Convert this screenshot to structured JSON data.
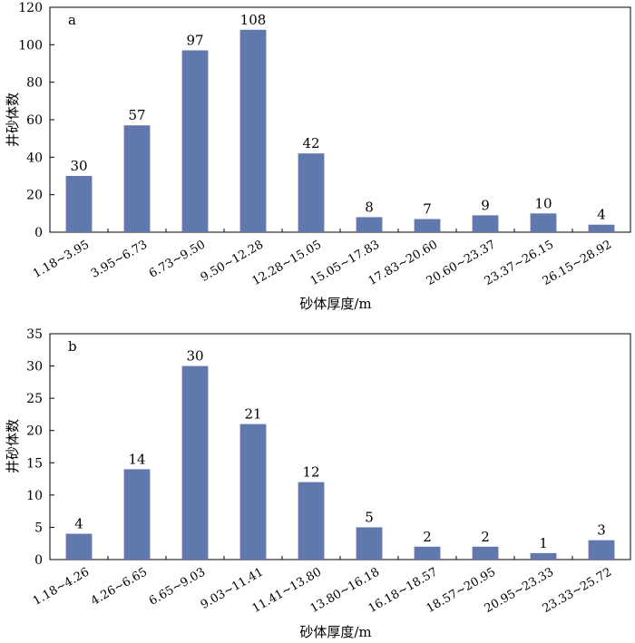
{
  "colors": {
    "bar": "#6178ad",
    "axis": "#000000"
  },
  "chart_data": [
    {
      "type": "bar",
      "panel_label": "a",
      "xlabel": "砂体厚度/m",
      "ylabel": "井砂体数",
      "ylim": [
        0,
        120
      ],
      "yticks": [
        0,
        20,
        40,
        60,
        80,
        100,
        120
      ],
      "categories": [
        "1.18~3.95",
        "3.95~6.73",
        "6.73~9.50",
        "9.50~12.28",
        "12.28~15.05",
        "15.05~17.83",
        "17.83~20.60",
        "20.60~23.37",
        "23.37~26.15",
        "26.15~28.92"
      ],
      "values": [
        30,
        57,
        97,
        108,
        42,
        8,
        7,
        9,
        10,
        4
      ]
    },
    {
      "type": "bar",
      "panel_label": "b",
      "xlabel": "砂体厚度/m",
      "ylabel": "井砂体数",
      "ylim": [
        0,
        35
      ],
      "yticks": [
        0,
        5,
        10,
        15,
        20,
        25,
        30,
        35
      ],
      "categories": [
        "1.18~4.26",
        "4.26~6.65",
        "6.65~9.03",
        "9.03~11.41",
        "11.41~13.80",
        "13.80~16.18",
        "16.18~18.57",
        "18.57~20.95",
        "20.95~23.33",
        "23.33~25.72"
      ],
      "values": [
        4,
        14,
        30,
        21,
        12,
        5,
        2,
        2,
        1,
        3
      ]
    }
  ]
}
